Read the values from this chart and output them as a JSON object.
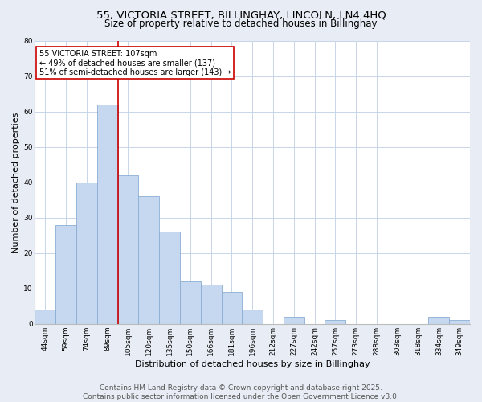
{
  "title1": "55, VICTORIA STREET, BILLINGHAY, LINCOLN, LN4 4HQ",
  "title2": "Size of property relative to detached houses in Billinghay",
  "xlabel": "Distribution of detached houses by size in Billinghay",
  "ylabel": "Number of detached properties",
  "categories": [
    "44sqm",
    "59sqm",
    "74sqm",
    "89sqm",
    "105sqm",
    "120sqm",
    "135sqm",
    "150sqm",
    "166sqm",
    "181sqm",
    "196sqm",
    "212sqm",
    "227sqm",
    "242sqm",
    "257sqm",
    "273sqm",
    "288sqm",
    "303sqm",
    "318sqm",
    "334sqm",
    "349sqm"
  ],
  "values": [
    4,
    28,
    40,
    62,
    42,
    36,
    26,
    12,
    11,
    9,
    4,
    0,
    2,
    0,
    1,
    0,
    0,
    0,
    0,
    2,
    1
  ],
  "bar_color": "#c5d8ef",
  "bar_edge_color": "#8aadd4",
  "highlight_line_index": 4,
  "highlight_line_color": "#cc0000",
  "annotation_text": "55 VICTORIA STREET: 107sqm\n← 49% of detached houses are smaller (137)\n51% of semi-detached houses are larger (143) →",
  "annotation_box_facecolor": "#ffffff",
  "annotation_box_edgecolor": "#cc0000",
  "ylim": [
    0,
    80
  ],
  "yticks": [
    0,
    10,
    20,
    30,
    40,
    50,
    60,
    70,
    80
  ],
  "grid_color": "#c8d4e8",
  "plot_bg_color": "#ffffff",
  "fig_bg_color": "#e8edf5",
  "footer_text": "Contains HM Land Registry data © Crown copyright and database right 2025.\nContains public sector information licensed under the Open Government Licence v3.0.",
  "title_fontsize": 9.5,
  "subtitle_fontsize": 8.5,
  "tick_fontsize": 6.5,
  "ylabel_fontsize": 8,
  "xlabel_fontsize": 8,
  "annotation_fontsize": 7,
  "footer_fontsize": 6.5
}
